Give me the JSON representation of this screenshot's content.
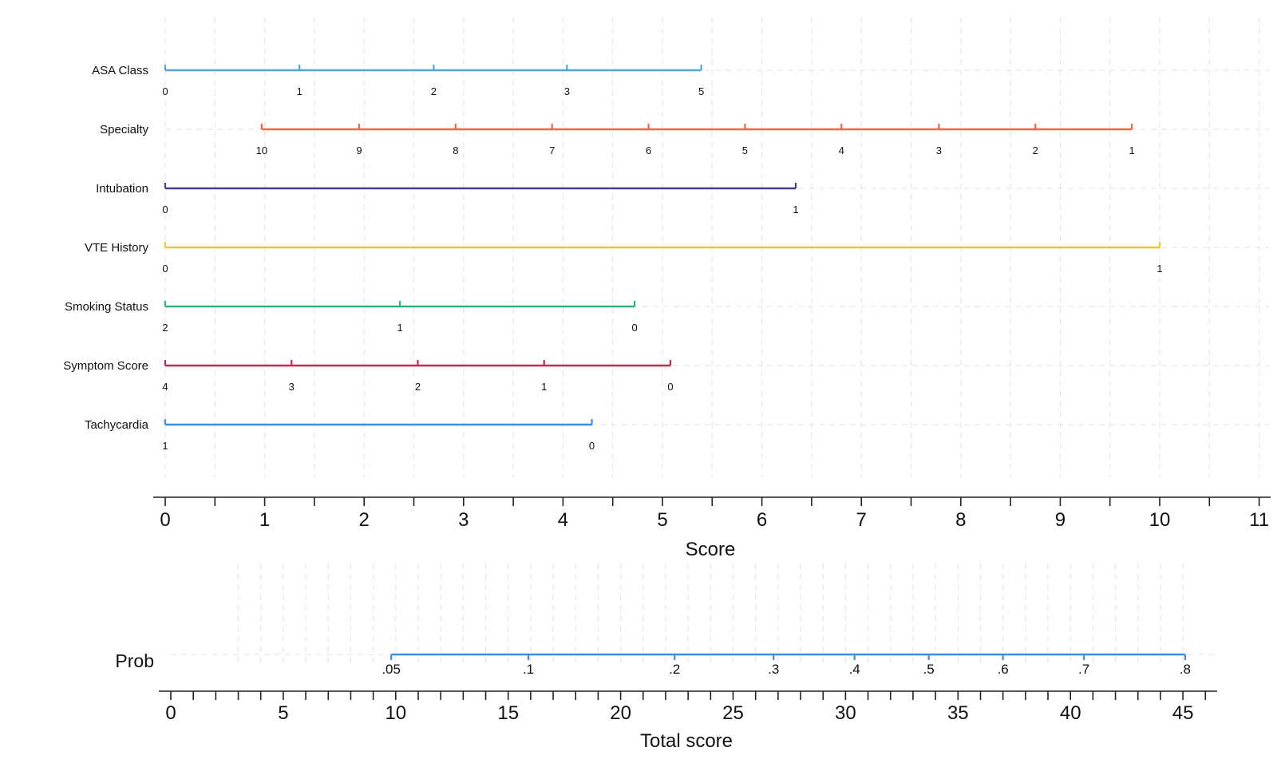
{
  "chart_data": {
    "type": "nomogram",
    "top_panel": {
      "xlabel": "Score",
      "x_ticks": [
        0,
        1,
        2,
        3,
        4,
        5,
        6,
        7,
        8,
        9,
        10,
        11
      ],
      "x_range": [
        0,
        11
      ],
      "grid": true,
      "variables": [
        {
          "name": "ASA Class",
          "color": "#4AA8E0",
          "levels": [
            {
              "label": "0",
              "score": 0
            },
            {
              "label": "1",
              "score": 1.35
            },
            {
              "label": "2",
              "score": 2.7
            },
            {
              "label": "3",
              "score": 4.04
            },
            {
              "label": "5",
              "score": 5.39
            }
          ]
        },
        {
          "name": "Specialty",
          "color": "#EE6A3E",
          "levels": [
            {
              "label": "10",
              "score": 0.97
            },
            {
              "label": "9",
              "score": 1.95
            },
            {
              "label": "8",
              "score": 2.92
            },
            {
              "label": "7",
              "score": 3.89
            },
            {
              "label": "6",
              "score": 4.86
            },
            {
              "label": "5",
              "score": 5.83
            },
            {
              "label": "4",
              "score": 6.8
            },
            {
              "label": "3",
              "score": 7.78
            },
            {
              "label": "2",
              "score": 8.75
            },
            {
              "label": "1",
              "score": 9.72
            }
          ]
        },
        {
          "name": "Intubation",
          "color": "#4B3B8F",
          "levels": [
            {
              "label": "0",
              "score": 0
            },
            {
              "label": "1",
              "score": 6.34
            }
          ]
        },
        {
          "name": "VTE History",
          "color": "#E8C82E",
          "levels": [
            {
              "label": "0",
              "score": 0
            },
            {
              "label": "1",
              "score": 10
            }
          ]
        },
        {
          "name": "Smoking Status",
          "color": "#2DB47D",
          "levels": [
            {
              "label": "2",
              "score": 0
            },
            {
              "label": "1",
              "score": 2.36
            },
            {
              "label": "0",
              "score": 4.72
            }
          ]
        },
        {
          "name": "Symptom Score",
          "color": "#C8284E",
          "levels": [
            {
              "label": "4",
              "score": 0
            },
            {
              "label": "3",
              "score": 1.27
            },
            {
              "label": "2",
              "score": 2.54
            },
            {
              "label": "1",
              "score": 3.81
            },
            {
              "label": "0",
              "score": 5.08
            }
          ]
        },
        {
          "name": "Tachycardia",
          "color": "#3A8EE6",
          "levels": [
            {
              "label": "1",
              "score": 0
            },
            {
              "label": "0",
              "score": 4.29
            }
          ]
        }
      ]
    },
    "bottom_panel": {
      "xlabel": "Total score",
      "x_ticks": [
        0,
        5,
        10,
        15,
        20,
        25,
        30,
        35,
        40,
        45
      ],
      "x_range": [
        0,
        46
      ],
      "prob_label": "Prob",
      "prob_color": "#3A8EE6",
      "prob_points": [
        {
          "label": ".05",
          "total": 9.8
        },
        {
          "label": ".1",
          "total": 15.9
        },
        {
          "label": ".2",
          "total": 22.4
        },
        {
          "label": ".3",
          "total": 26.8
        },
        {
          "label": ".4",
          "total": 30.4
        },
        {
          "label": ".5",
          "total": 33.7
        },
        {
          "label": ".6",
          "total": 37
        },
        {
          "label": ".7",
          "total": 40.6
        },
        {
          "label": ".8",
          "total": 45.1
        }
      ]
    }
  }
}
